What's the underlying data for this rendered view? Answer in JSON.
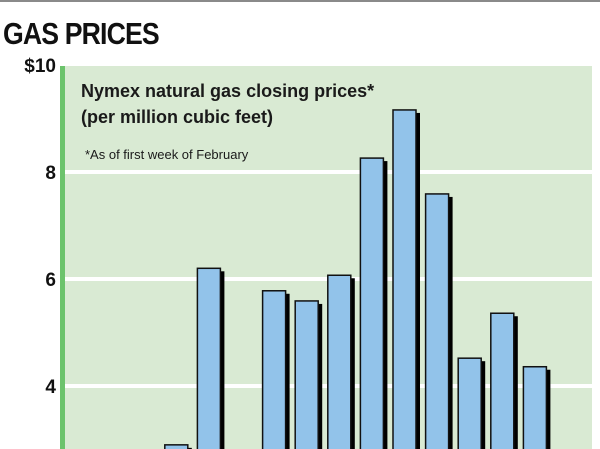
{
  "chart_data": {
    "type": "bar",
    "title": "GAS PRICES",
    "annotation": "Nymex natural gas closing prices*",
    "annotation_units": "(per million cubic feet)",
    "footnote": "*As of first week of February",
    "yticks": [
      "$10",
      "8",
      "6",
      "4"
    ],
    "ytick_values": [
      10,
      8,
      6,
      4
    ],
    "ylim": [
      2.9,
      10.0
    ],
    "grid": true,
    "colors": {
      "bar": "#92c3ea",
      "background": "#d9ead3",
      "axis": "#6cc36c",
      "grid": "#ffffff",
      "shadow": "#000000"
    },
    "values": [
      null,
      null,
      null,
      2.9,
      6.2,
      null,
      5.78,
      5.59,
      6.07,
      8.26,
      9.16,
      7.59,
      4.52,
      5.36,
      4.36
    ]
  }
}
